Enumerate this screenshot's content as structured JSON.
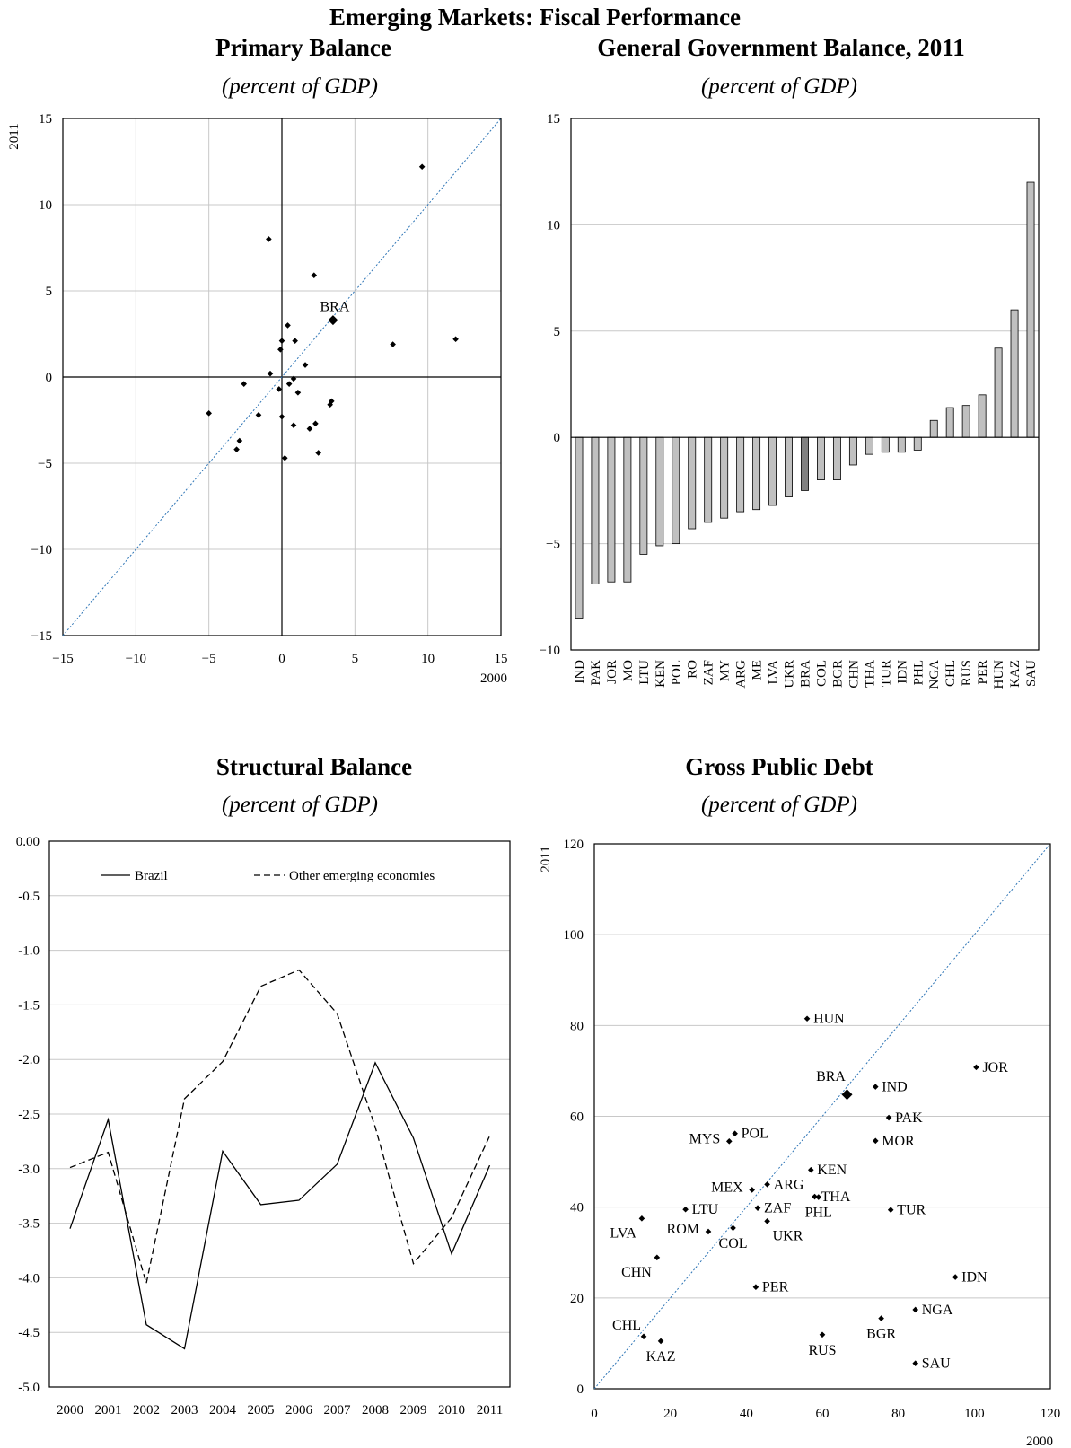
{
  "figure_title": "Emerging Markets: Fiscal Performance",
  "panels": [
    {
      "title": "Primary Balance",
      "subtitle": "(percent of GDP)"
    },
    {
      "title": "General Government Balance, 2011",
      "subtitle": "(percent of GDP)"
    },
    {
      "title": "Structural Balance",
      "subtitle": "(percent of GDP)"
    },
    {
      "title": "Gross Public Debt",
      "subtitle": "(percent of GDP)"
    }
  ],
  "colors": {
    "bar": "#c0c0c0",
    "bar_highlight": "#808080",
    "diagonal": "#2e75b6",
    "grid": "#c8c8c8"
  },
  "chart_data": [
    {
      "type": "scatter",
      "title": "Primary Balance",
      "xlabel": "2000",
      "ylabel": "2011",
      "xlim": [
        -15,
        15
      ],
      "ylim": [
        -15,
        15
      ],
      "xticks": [
        -15,
        -10,
        -5,
        0,
        5,
        10,
        15
      ],
      "yticks": [
        -15,
        -10,
        -5,
        0,
        5,
        10,
        15
      ],
      "xtick_labels": [
        "−15",
        "−10",
        "−5",
        "0",
        "5",
        "10",
        "15"
      ],
      "ytick_labels": [
        "−15",
        "−10",
        "−5",
        "0",
        "5",
        "10",
        "15"
      ],
      "grid": true,
      "diagonal": true,
      "highlight": {
        "label": "BRA",
        "x": 3.5,
        "y": 3.3
      },
      "points": [
        [
          9.6,
          12.2
        ],
        [
          -0.9,
          8.0
        ],
        [
          2.2,
          5.9
        ],
        [
          0.4,
          3.0
        ],
        [
          0.9,
          2.1
        ],
        [
          0.0,
          2.1
        ],
        [
          -0.1,
          1.6
        ],
        [
          7.6,
          1.9
        ],
        [
          11.9,
          2.2
        ],
        [
          1.6,
          0.7
        ],
        [
          -0.8,
          0.2
        ],
        [
          0.8,
          -0.1
        ],
        [
          0.5,
          -0.4
        ],
        [
          -2.6,
          -0.4
        ],
        [
          -0.2,
          -0.7
        ],
        [
          1.1,
          -0.9
        ],
        [
          3.4,
          -1.4
        ],
        [
          3.3,
          -1.6
        ],
        [
          -5.0,
          -2.1
        ],
        [
          -1.6,
          -2.2
        ],
        [
          0.0,
          -2.3
        ],
        [
          2.3,
          -2.7
        ],
        [
          0.8,
          -2.8
        ],
        [
          1.9,
          -3.0
        ],
        [
          -2.9,
          -3.7
        ],
        [
          -3.1,
          -4.2
        ],
        [
          2.5,
          -4.4
        ],
        [
          0.2,
          -4.7
        ]
      ]
    },
    {
      "type": "bar",
      "title": "General Government Balance, 2011",
      "ylim": [
        -10,
        15
      ],
      "yticks": [
        -10,
        -5,
        0,
        5,
        10,
        15
      ],
      "ytick_labels": [
        "−10",
        "−5",
        "0",
        "5",
        "10",
        "15"
      ],
      "grid": true,
      "highlight_category": "BRA",
      "categories": [
        "IND",
        "PAK",
        "JOR",
        "MO",
        "LTU",
        "KEN",
        "POL",
        "RO",
        "ZAF",
        "MY",
        "ARG",
        "ME",
        "LVA",
        "UKR",
        "BRA",
        "COL",
        "BGR",
        "CHN",
        "THA",
        "TUR",
        "IDN",
        "PHL",
        "NGA",
        "CHL",
        "RUS",
        "PER",
        "HUN",
        "KAZ",
        "SAU"
      ],
      "values": [
        -8.5,
        -6.9,
        -6.8,
        -6.8,
        -5.5,
        -5.1,
        -5.0,
        -4.3,
        -4.0,
        -3.8,
        -3.5,
        -3.4,
        -3.2,
        -2.8,
        -2.5,
        -2.0,
        -2.0,
        -1.3,
        -0.8,
        -0.7,
        -0.7,
        -0.6,
        0.8,
        1.4,
        1.5,
        2.0,
        4.2,
        6.0,
        12.0
      ]
    },
    {
      "type": "line",
      "title": "Structural Balance",
      "x": [
        "2000",
        "2001",
        "2002",
        "2003",
        "2004",
        "2005",
        "2006",
        "2007",
        "2008",
        "2009",
        "2010",
        "2011"
      ],
      "ylim": [
        -5.0,
        0.0
      ],
      "yticks": [
        0.0,
        -0.5,
        -1.0,
        -1.5,
        -2.0,
        -2.5,
        -3.0,
        -3.5,
        -4.0,
        -4.5,
        -5.0
      ],
      "ytick_labels": [
        "0.00",
        "-0.5",
        "-1.0",
        "-1.5",
        "-2.0",
        "-2.5",
        "-3.0",
        "-3.5",
        "-4.0",
        "-4.5",
        "-5.0"
      ],
      "grid": true,
      "legend_position": "top",
      "series": [
        {
          "name": "Brazil",
          "style": "solid",
          "values": [
            -3.55,
            -2.55,
            -4.43,
            -4.65,
            -2.84,
            -3.33,
            -3.29,
            -2.96,
            -2.03,
            -2.72,
            -3.78,
            -2.97
          ]
        },
        {
          "name": "Other emerging economies",
          "style": "dashed",
          "values": [
            -2.99,
            -2.85,
            -4.05,
            -2.36,
            -2.02,
            -1.33,
            -1.18,
            -1.58,
            -2.62,
            -3.87,
            -3.45,
            -2.7
          ]
        }
      ]
    },
    {
      "type": "scatter",
      "title": "Gross Public Debt",
      "xlabel": "2000",
      "ylabel": "2011",
      "xlim": [
        0,
        120
      ],
      "ylim": [
        0,
        120
      ],
      "xticks": [
        0,
        20,
        40,
        60,
        80,
        100,
        120
      ],
      "yticks": [
        0,
        20,
        40,
        60,
        80,
        100,
        120
      ],
      "grid": true,
      "diagonal": true,
      "highlight": {
        "label": "BRA",
        "x": 66.5,
        "y": 64.8
      },
      "points": [
        {
          "label": "HUN",
          "x": 56,
          "y": 81.5,
          "pos": "right"
        },
        {
          "label": "JOR",
          "x": 100.5,
          "y": 70.8,
          "pos": "right"
        },
        {
          "label": "IND",
          "x": 74,
          "y": 66.5,
          "pos": "right"
        },
        {
          "label": "PAK",
          "x": 77.5,
          "y": 59.7,
          "pos": "right"
        },
        {
          "label": "POL",
          "x": 37,
          "y": 56.2,
          "pos": "right"
        },
        {
          "label": "MYS",
          "x": 35.5,
          "y": 54.5,
          "pos": "left"
        },
        {
          "label": "MOR",
          "x": 74,
          "y": 54.6,
          "pos": "right"
        },
        {
          "label": "KEN",
          "x": 57,
          "y": 48.2,
          "pos": "right"
        },
        {
          "label": "ARG",
          "x": 45.5,
          "y": 45.0,
          "pos": "right"
        },
        {
          "label": "MEX",
          "x": 41.5,
          "y": 43.8,
          "pos": "left"
        },
        {
          "label": "THA",
          "x": 58,
          "y": 42.3,
          "pos": "right"
        },
        {
          "label": "PHL",
          "x": 59,
          "y": 42.2,
          "pos": "below"
        },
        {
          "label": "LTU",
          "x": 24,
          "y": 39.5,
          "pos": "right"
        },
        {
          "label": "ZAF",
          "x": 43,
          "y": 39.8,
          "pos": "right"
        },
        {
          "label": "TUR",
          "x": 78,
          "y": 39.4,
          "pos": "right"
        },
        {
          "label": "LVA",
          "x": 12.5,
          "y": 37.5,
          "pos": "below-left"
        },
        {
          "label": "UKR",
          "x": 45.5,
          "y": 36.9,
          "pos": "below-right"
        },
        {
          "label": "COL",
          "x": 36.5,
          "y": 35.4,
          "pos": "below"
        },
        {
          "label": "ROM",
          "x": 30,
          "y": 34.6,
          "pos": "left"
        },
        {
          "label": "CHN",
          "x": 16.5,
          "y": 28.9,
          "pos": "below-left"
        },
        {
          "label": "IDN",
          "x": 95,
          "y": 24.6,
          "pos": "right"
        },
        {
          "label": "PER",
          "x": 42.5,
          "y": 22.4,
          "pos": "right"
        },
        {
          "label": "NGA",
          "x": 84.5,
          "y": 17.4,
          "pos": "right"
        },
        {
          "label": "BGR",
          "x": 75.5,
          "y": 15.5,
          "pos": "below"
        },
        {
          "label": "CHL",
          "x": 13,
          "y": 11.5,
          "pos": "above-left"
        },
        {
          "label": "RUS",
          "x": 60,
          "y": 11.9,
          "pos": "below"
        },
        {
          "label": "KAZ",
          "x": 17.5,
          "y": 10.5,
          "pos": "below"
        },
        {
          "label": "SAU",
          "x": 84.5,
          "y": 5.6,
          "pos": "right"
        }
      ]
    }
  ]
}
